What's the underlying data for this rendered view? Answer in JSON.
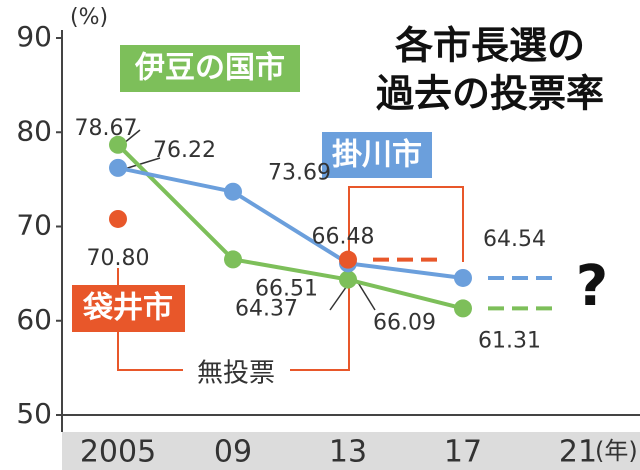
{
  "chart_data": {
    "type": "line",
    "title": [
      "各市長選の",
      "過去の投票率"
    ],
    "y_label": "(%)",
    "x_label": "(年)",
    "categories": [
      "2005",
      "09",
      "13",
      "17",
      "21"
    ],
    "ylim": [
      50,
      90
    ],
    "yticks": [
      50,
      60,
      70,
      80,
      90
    ],
    "series": [
      {
        "name": "伊豆の国市",
        "color": "#7dbf5a",
        "values": [
          78.67,
          66.51,
          64.37,
          61.31,
          null
        ],
        "value_labels": [
          "78.67",
          "66.51",
          "64.37",
          "61.31",
          null
        ]
      },
      {
        "name": "掛川市",
        "color": "#6b9fdc",
        "values": [
          76.22,
          73.69,
          66.09,
          64.54,
          null
        ],
        "value_labels": [
          "76.22",
          "73.69",
          "66.09",
          "64.54",
          null
        ]
      },
      {
        "name": "袋井市",
        "color": "#e8572a",
        "values": [
          70.8,
          null,
          66.48,
          null,
          null
        ],
        "value_labels": [
          "70.80",
          null,
          "66.48",
          null,
          null
        ]
      }
    ],
    "annotations": [
      "無投票",
      "?"
    ]
  }
}
